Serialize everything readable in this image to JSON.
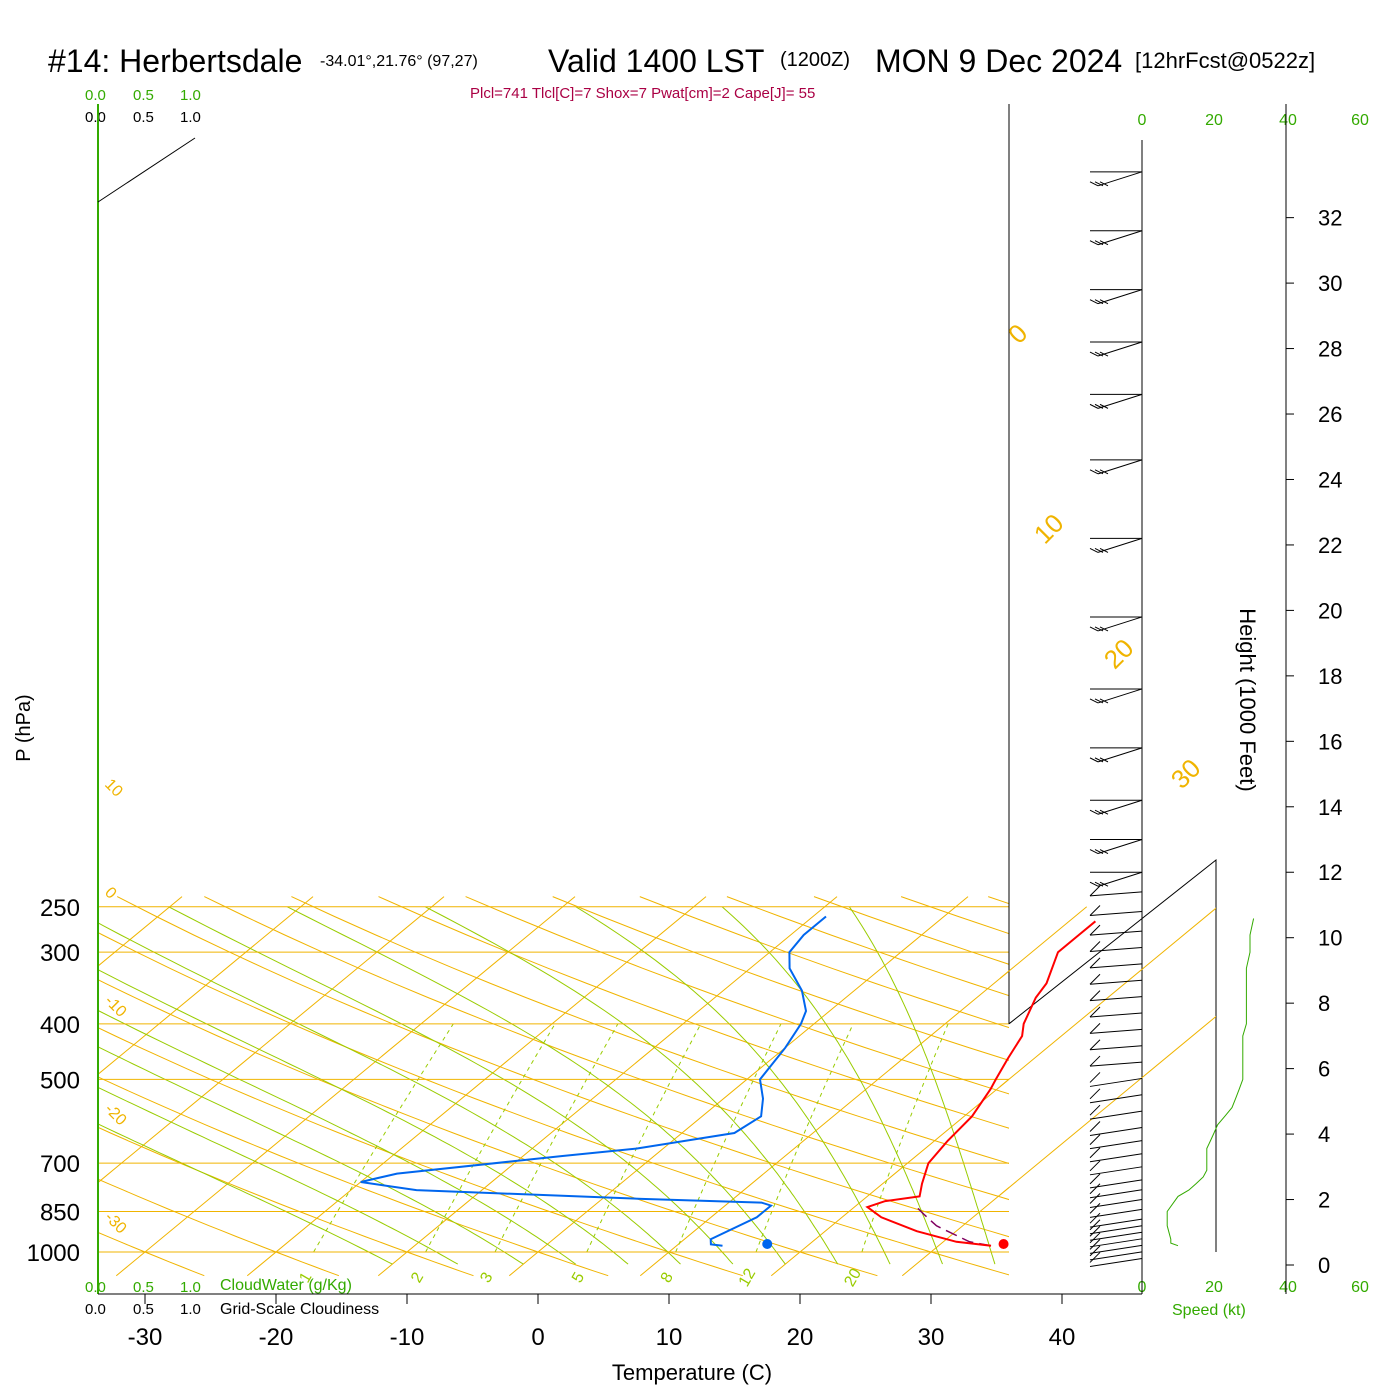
{
  "header": {
    "station": "#14: Herbertsdale",
    "coords": "-34.01°,21.76° (97,27)",
    "valid": "Valid 1400 LST",
    "zulu": "(1200Z)",
    "date": "MON 9 Dec 2024",
    "forecast": "[12hrFcst@0522z]",
    "indices": "Plcl=741 Tlcl[C]=7 Shox=7 Pwat[cm]=2 Cape[J]= 55"
  },
  "scales": {
    "cloudwater_ticks": [
      "0.0",
      "0.5",
      "1.0"
    ],
    "cloudiness_ticks": [
      "0.0",
      "0.5",
      "1.0"
    ],
    "cloudwater_label": "CloudWater (g/Kg)",
    "cloudiness_label": "Grid-Scale Cloudiness",
    "speed_ticks": [
      "0",
      "20",
      "40",
      "60"
    ],
    "speed_label": "Speed (kt)"
  },
  "colors": {
    "temperature": "#ff0000",
    "dewpoint": "#0066ee",
    "isotherm": "#f0b400",
    "dry_adiabat": "#f0b400",
    "moist_adiabat": "#99cc00",
    "mixing_ratio": "#99cc00",
    "parcel": "#800060",
    "green_text": "#33aa00",
    "indices_text": "#aa0044"
  },
  "chart_data": {
    "type": "skew-t log-p sounding",
    "xlabel": "Temperature (C)",
    "ylabel": "P (hPa)",
    "y2label": "Height (1000 Feet)",
    "x_ticks": [
      -30,
      -20,
      -10,
      0,
      10,
      20,
      30,
      40
    ],
    "p_ticks": [
      250,
      300,
      400,
      500,
      700,
      850,
      1000
    ],
    "height_ticks": [
      0,
      2,
      4,
      6,
      8,
      10,
      12,
      14,
      16,
      18,
      20,
      22,
      24,
      26,
      28,
      30,
      32
    ],
    "isotherm_labels": [
      -30,
      -20,
      -10,
      0,
      10,
      20,
      30,
      40
    ],
    "right_isotherm_labels": [
      0,
      10,
      20,
      30
    ],
    "left_isotherm_labels": [
      10,
      0,
      -10,
      -20,
      -30
    ],
    "mixing_ratio_labels": [
      1,
      2,
      3,
      5,
      8,
      12,
      20
    ],
    "temperature": [
      [
        975,
        34
      ],
      [
        960,
        31
      ],
      [
        920,
        27
      ],
      [
        870,
        23
      ],
      [
        835,
        21
      ],
      [
        815,
        21.8
      ],
      [
        800,
        24
      ],
      [
        760,
        23
      ],
      [
        700,
        21.6
      ],
      [
        640,
        21
      ],
      [
        580,
        20.6
      ],
      [
        520,
        19.5
      ],
      [
        500,
        19
      ],
      [
        460,
        18
      ],
      [
        420,
        17
      ],
      [
        400,
        16
      ],
      [
        360,
        14.5
      ],
      [
        340,
        14
      ],
      [
        300,
        12
      ],
      [
        280,
        12
      ],
      [
        265,
        12
      ]
    ],
    "dewpoint": [
      [
        975,
        13.5
      ],
      [
        970,
        12.5
      ],
      [
        950,
        12
      ],
      [
        870,
        13.5
      ],
      [
        830,
        13.5
      ],
      [
        820,
        12.5
      ],
      [
        808,
        3
      ],
      [
        780,
        -15
      ],
      [
        755,
        -20
      ],
      [
        730,
        -18
      ],
      [
        680,
        -7
      ],
      [
        660,
        -2
      ],
      [
        620,
        4
      ],
      [
        580,
        4.5
      ],
      [
        540,
        3
      ],
      [
        500,
        1
      ],
      [
        440,
        0
      ],
      [
        400,
        -1
      ],
      [
        380,
        -1.8
      ],
      [
        350,
        -4
      ],
      [
        320,
        -7
      ],
      [
        300,
        -8.5
      ],
      [
        280,
        -9
      ],
      [
        260,
        -9
      ]
    ],
    "parcel_path": [
      [
        975,
        34
      ],
      [
        960,
        32
      ],
      [
        900,
        28
      ],
      [
        860,
        26
      ],
      [
        830,
        24.5
      ]
    ],
    "surface_points": {
      "temperature": 34.8,
      "dewpoint": 17.5
    },
    "wind_speed_kt": [
      [
        975,
        10
      ],
      [
        965,
        8
      ],
      [
        950,
        8
      ],
      [
        900,
        7
      ],
      [
        850,
        7
      ],
      [
        800,
        10
      ],
      [
        780,
        13
      ],
      [
        760,
        15
      ],
      [
        740,
        17
      ],
      [
        720,
        18
      ],
      [
        700,
        18
      ],
      [
        680,
        18
      ],
      [
        660,
        18
      ],
      [
        640,
        19
      ],
      [
        620,
        20
      ],
      [
        600,
        21
      ],
      [
        580,
        23
      ],
      [
        560,
        25
      ],
      [
        540,
        26
      ],
      [
        520,
        27
      ],
      [
        500,
        28
      ],
      [
        480,
        28
      ],
      [
        450,
        28
      ],
      [
        420,
        28
      ],
      [
        400,
        29
      ],
      [
        380,
        29
      ],
      [
        360,
        29
      ],
      [
        340,
        29
      ],
      [
        320,
        29
      ],
      [
        300,
        30
      ],
      [
        280,
        30
      ],
      [
        262,
        31
      ]
    ],
    "wind_barb_heights_kft": [
      0.2,
      0.4,
      0.6,
      0.8,
      1.0,
      1.2,
      1.4,
      1.7,
      2.0,
      2.3,
      2.6,
      3.0,
      3.4,
      3.8,
      4.2,
      4.7,
      5.2,
      5.7,
      6.2,
      6.7,
      7.2,
      7.7,
      8.2,
      8.7,
      9.2,
      9.7,
      10.2,
      10.8,
      11.4,
      12.0,
      13.0,
      14.2,
      15.8,
      17.6,
      19.8,
      22.2,
      24.6,
      26.6,
      28.2,
      29.8,
      31.6,
      33.4
    ]
  }
}
